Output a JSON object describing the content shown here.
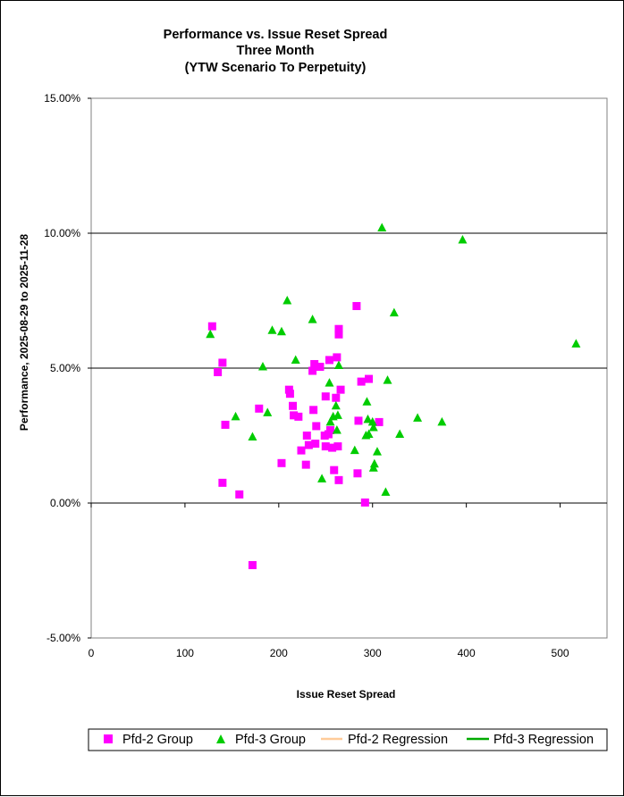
{
  "chart_data": {
    "type": "scatter",
    "title_lines": [
      "Performance vs. Issue Reset Spread",
      "Three Month",
      "(YTW Scenario To Perpetuity)"
    ],
    "xlabel": "Issue  Reset  Spread",
    "ylabel": "Performance, 2025-08-29  to 2025-11-28",
    "xlim": [
      0,
      550
    ],
    "ylim": [
      -5,
      15
    ],
    "x_ticks": [
      0,
      100,
      200,
      300,
      400,
      500
    ],
    "y_ticks": [
      -5,
      0,
      5,
      10,
      15
    ],
    "y_tick_labels": [
      "-5.00%",
      "0.00%",
      "5.00%",
      "10.00%",
      "15.00%"
    ],
    "gridlines_y": [
      0,
      5,
      10
    ],
    "legend_position": "bottom",
    "series": [
      {
        "name": "Pfd-2 Group",
        "marker": "square",
        "color": "#ff00ff",
        "points": [
          [
            129,
            6.55
          ],
          [
            135,
            4.85
          ],
          [
            140,
            5.2
          ],
          [
            143,
            2.9
          ],
          [
            140,
            0.75
          ],
          [
            158,
            0.32
          ],
          [
            172,
            -2.3
          ],
          [
            179,
            3.5
          ],
          [
            203,
            1.48
          ],
          [
            211,
            4.2
          ],
          [
            212,
            4.05
          ],
          [
            215,
            3.6
          ],
          [
            216,
            3.25
          ],
          [
            221,
            3.2
          ],
          [
            224,
            1.95
          ],
          [
            229,
            1.42
          ],
          [
            230,
            2.5
          ],
          [
            232,
            2.15
          ],
          [
            236,
            4.9
          ],
          [
            237,
            3.45
          ],
          [
            238,
            5.15
          ],
          [
            239,
            2.2
          ],
          [
            240,
            2.85
          ],
          [
            244,
            5.05
          ],
          [
            249,
            2.5
          ],
          [
            250,
            2.1
          ],
          [
            250,
            3.95
          ],
          [
            253,
            2.55
          ],
          [
            254,
            5.3
          ],
          [
            255,
            2.7
          ],
          [
            257,
            2.05
          ],
          [
            259,
            1.22
          ],
          [
            261,
            3.9
          ],
          [
            262,
            5.4
          ],
          [
            263,
            2.1
          ],
          [
            264,
            0.85
          ],
          [
            264,
            6.25
          ],
          [
            264,
            6.45
          ],
          [
            266,
            4.2
          ],
          [
            283,
            7.3
          ],
          [
            284,
            1.1
          ],
          [
            285,
            3.05
          ],
          [
            288,
            4.5
          ],
          [
            292,
            0.02
          ],
          [
            296,
            4.6
          ],
          [
            307,
            3.0
          ]
        ]
      },
      {
        "name": "Pfd-3 Group",
        "marker": "triangle",
        "color": "#00cc00",
        "points": [
          [
            127,
            6.25
          ],
          [
            154,
            3.2
          ],
          [
            172,
            2.45
          ],
          [
            183,
            5.05
          ],
          [
            188,
            3.35
          ],
          [
            193,
            6.4
          ],
          [
            203,
            6.35
          ],
          [
            209,
            7.5
          ],
          [
            218,
            5.3
          ],
          [
            236,
            6.8
          ],
          [
            246,
            0.9
          ],
          [
            254,
            4.45
          ],
          [
            255,
            3.0
          ],
          [
            258,
            3.2
          ],
          [
            261,
            3.6
          ],
          [
            262,
            2.7
          ],
          [
            263,
            3.25
          ],
          [
            264,
            5.1
          ],
          [
            281,
            1.95
          ],
          [
            293,
            2.5
          ],
          [
            294,
            3.75
          ],
          [
            295,
            3.1
          ],
          [
            296,
            2.55
          ],
          [
            300,
            3.0
          ],
          [
            301,
            2.8
          ],
          [
            301,
            1.3
          ],
          [
            302,
            1.45
          ],
          [
            305,
            1.9
          ],
          [
            310,
            10.2
          ],
          [
            314,
            0.4
          ],
          [
            316,
            4.55
          ],
          [
            323,
            7.05
          ],
          [
            329,
            2.55
          ],
          [
            348,
            3.15
          ],
          [
            374,
            3.0
          ],
          [
            396,
            9.75
          ],
          [
            517,
            5.9
          ]
        ]
      }
    ],
    "regression_series": [
      {
        "name": "Pfd-2 Regression",
        "color": "#ffcc99"
      },
      {
        "name": "Pfd-3 Regression",
        "color": "#00aa00"
      }
    ]
  }
}
